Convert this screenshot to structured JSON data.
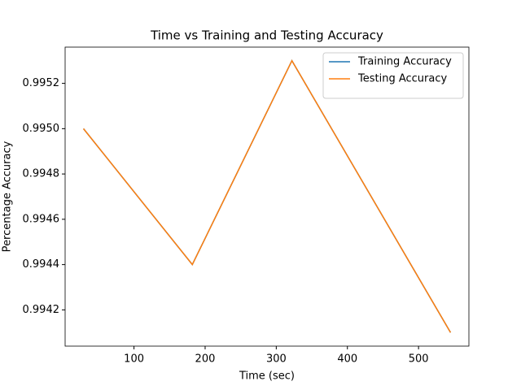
{
  "chart_data": {
    "type": "line",
    "title": "Time vs Training and Testing Accuracy",
    "x_label": "Time (sec)",
    "y_label": "Percentage Accuracy",
    "x": [
      29,
      182,
      322,
      545
    ],
    "series": [
      {
        "name": "Training Accuracy",
        "color": "#1f77b4",
        "values": [
          0.995,
          0.9944,
          0.9953,
          0.9941
        ]
      },
      {
        "name": "Testing Accuracy",
        "color": "#ff7f0e",
        "values": [
          0.995,
          0.9944,
          0.9953,
          0.9941
        ]
      }
    ],
    "xlim": [
      3.2,
      570.8
    ],
    "xticks": [
      100,
      200,
      300,
      400,
      500
    ],
    "ylim": [
      0.99404,
      0.99536
    ],
    "yticks": [
      0.9942,
      0.9944,
      0.9946,
      0.9948,
      {
        "value": 0.995,
        "label": "0.9950"
      },
      0.9952
    ],
    "grid": false,
    "legend": "upper right"
  }
}
